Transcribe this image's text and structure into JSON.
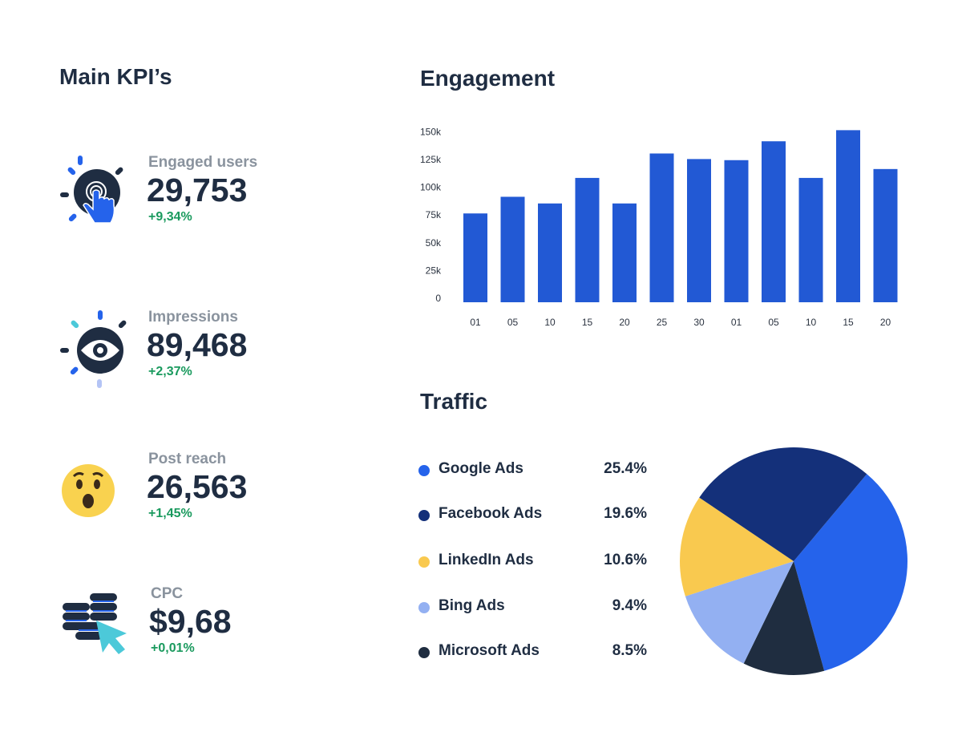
{
  "kpi": {
    "title": "Main KPI’s",
    "items": [
      {
        "label": "Engaged users",
        "value": "29,753",
        "change": "+9,34%",
        "icon": "touch-hand-icon"
      },
      {
        "label": "Impressions",
        "value": "89,468",
        "change": "+2,37%",
        "icon": "eye-icon"
      },
      {
        "label": "Post reach",
        "value": "26,563",
        "change": "+1,45%",
        "icon": "surprised-emoji-icon"
      },
      {
        "label": "CPC",
        "value": "$9,68",
        "change": "+0,01%",
        "icon": "coins-cursor-icon"
      }
    ]
  },
  "engagement": {
    "title": "Engagement"
  },
  "traffic": {
    "title": "Traffic"
  },
  "colors": {
    "positive": "#1a9a5e",
    "bar": "#2259d4",
    "text": "#1f2d42"
  },
  "chart_data": [
    {
      "type": "bar",
      "title": "Engagement",
      "categories": [
        "01",
        "05",
        "10",
        "15",
        "20",
        "25",
        "30",
        "01",
        "05",
        "10",
        "15",
        "20"
      ],
      "values": [
        80000,
        95000,
        89000,
        112000,
        89000,
        134000,
        129000,
        128000,
        145000,
        112000,
        155000,
        120000
      ],
      "yticks": [
        "0",
        "25k",
        "50k",
        "75k",
        "100k",
        "125k",
        "150k"
      ],
      "ylim": [
        0,
        150000
      ],
      "grid": false,
      "color": "#2259d4"
    },
    {
      "type": "pie",
      "title": "Traffic",
      "legend_position": "left",
      "slices": [
        {
          "name": "Google Ads",
          "value": 25.4,
          "label": "25.4%",
          "color": "#2563eb"
        },
        {
          "name": "Facebook Ads",
          "value": 19.6,
          "label": "19.6%",
          "color": "#14307a"
        },
        {
          "name": "LinkedIn Ads",
          "value": 10.6,
          "label": "10.6%",
          "color": "#f9c94f"
        },
        {
          "name": "Bing Ads",
          "value": 9.4,
          "label": "9.4%",
          "color": "#93b0f2"
        },
        {
          "name": "Microsoft Ads",
          "value": 8.5,
          "label": "8.5%",
          "color": "#1f2d40"
        }
      ]
    }
  ]
}
